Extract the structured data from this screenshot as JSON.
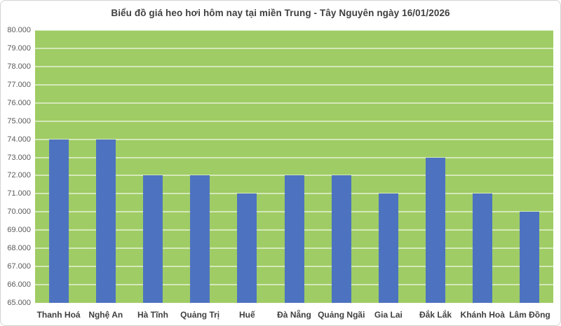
{
  "chart_data": {
    "type": "bar",
    "title": "Biểu đồ giá heo hơi hôm nay tại miền Trung - Tây Nguyên ngày 16/01/2026",
    "categories": [
      "Thanh Hoá",
      "Nghệ An",
      "Hà Tĩnh",
      "Quảng Trị",
      "Huế",
      "Đà Nẵng",
      "Quảng Ngãi",
      "Gia Lai",
      "Đắk Lắk",
      "Khánh Hoà",
      "Lâm Đồng"
    ],
    "values": [
      74000,
      74000,
      72000,
      72000,
      71000,
      72000,
      72000,
      71000,
      73000,
      71000,
      70000
    ],
    "xlabel": "",
    "ylabel": "",
    "ylim": [
      65000,
      80000
    ],
    "ytick_step": 1000,
    "ytick_labels": [
      "80.000",
      "79.000",
      "78.000",
      "77.000",
      "76.000",
      "75.000",
      "74.000",
      "73.000",
      "72.000",
      "71.000",
      "70.000",
      "69.000",
      "68.000",
      "67.000",
      "66.000",
      "65.000"
    ],
    "grid": true,
    "legend": "none",
    "colors": {
      "bar": "#4D73C0",
      "plot_bg": "#9FCC64",
      "gridline": "rgba(255,255,255,0.55)",
      "title": "#3F3F3F",
      "ytick": "#595959",
      "xtick": "#3F3F3F",
      "chart_border": "#D3D3D3",
      "background": "#FFFFFF"
    }
  }
}
